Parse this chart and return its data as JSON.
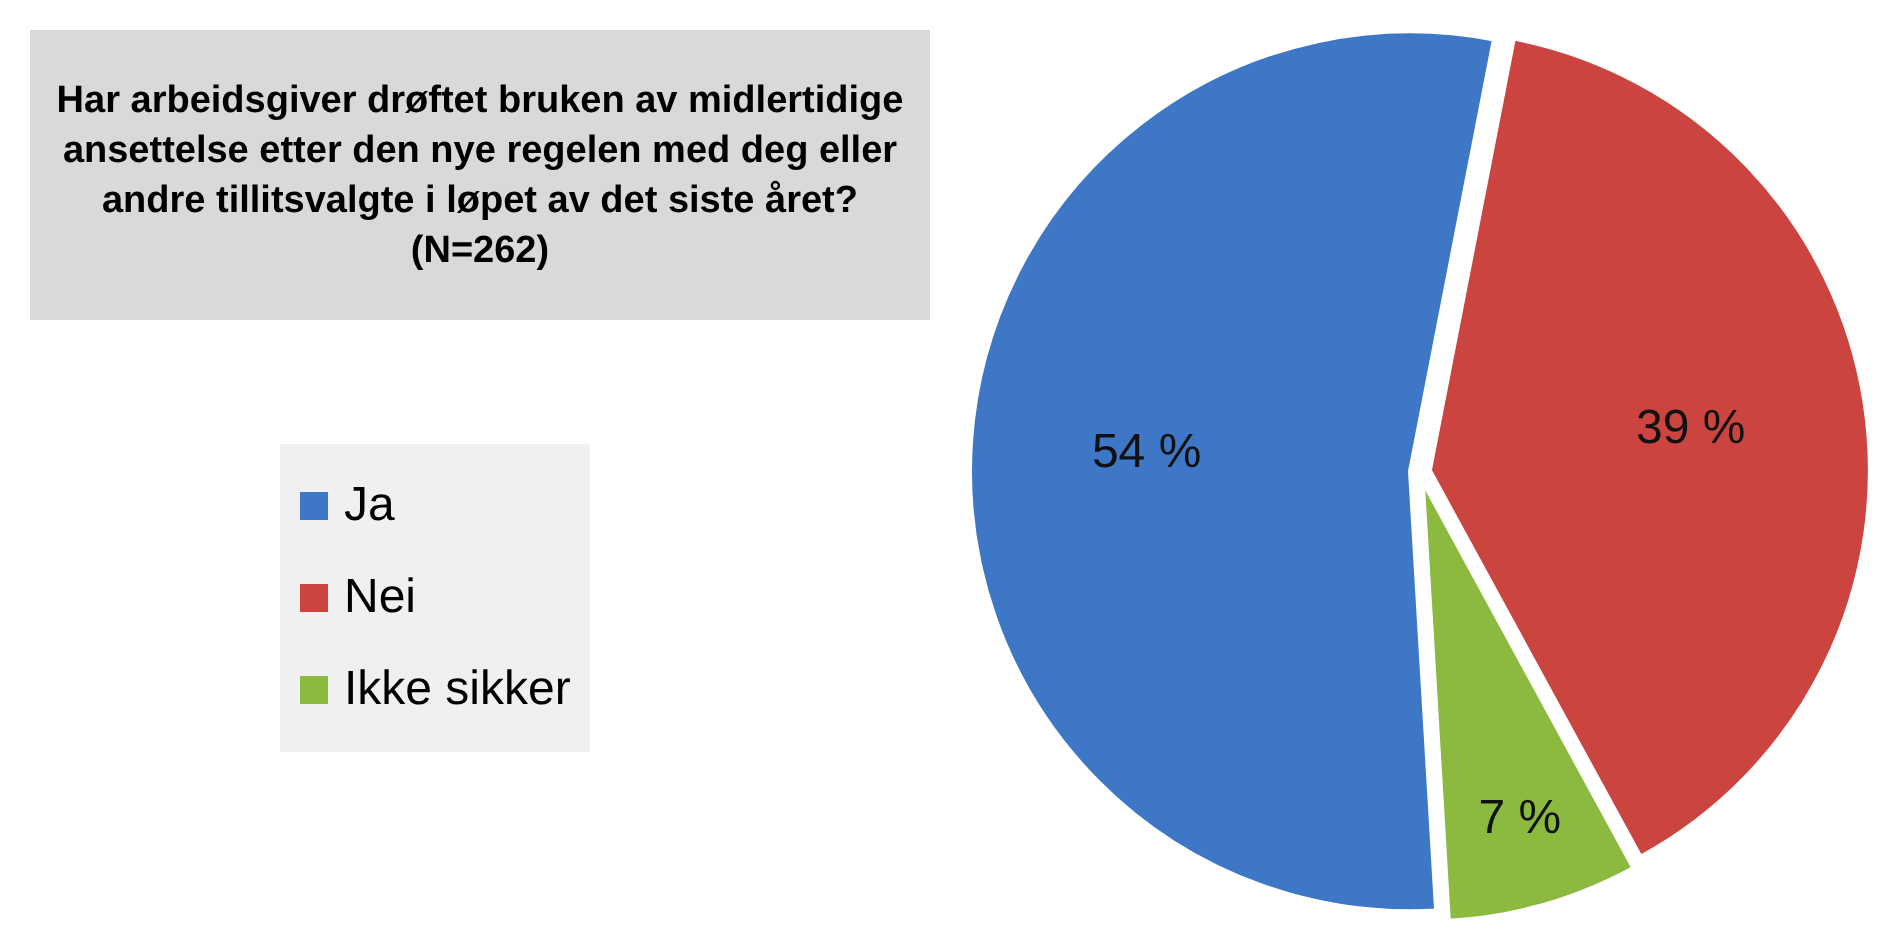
{
  "chart_data": {
    "type": "pie",
    "title": "Har arbeidsgiver drøftet bruken av midlertidige ansettelse etter den nye regelen med deg eller andre tillitsvalgte i løpet av det siste året? (N=262)",
    "categories": [
      "Ja",
      "Nei",
      "Ikke sikker"
    ],
    "values": [
      54,
      39,
      7
    ],
    "colors": [
      "#3d77c6",
      "#cc4440",
      "#8cba3f"
    ],
    "value_labels": [
      "54 %",
      "39 %",
      "7 %"
    ],
    "legend": "left"
  }
}
